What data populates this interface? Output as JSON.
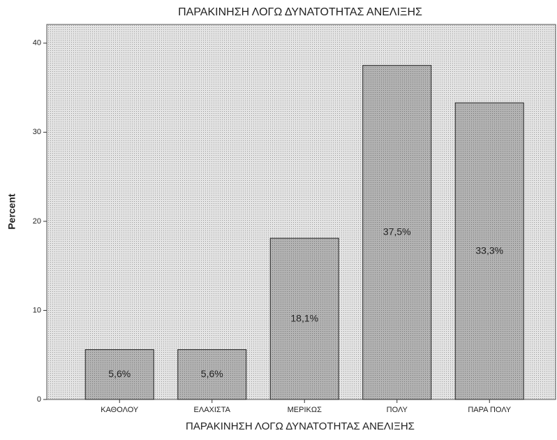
{
  "chart_data": {
    "type": "bar",
    "title": "ΠΑΡΑΚΙΝΗΣΗ ΛΟΓΩ ΔΥΝΑΤΟΤΗΤΑΣ ΑΝΕΛΙΞΗΣ",
    "x_label": "ΠΑΡΑΚΙΝΗΣΗ ΛΟΓΩ ΔΥΝΑΤΟΤΗΤΑΣ ΑΝΕΛΙΞΗΣ",
    "y_label": "Percent",
    "categories": [
      "ΚΑΘΟΛΟΥ",
      "ΕΛΑΧΙΣΤΑ",
      "ΜΕΡΙΚΩΣ",
      "ΠΟΛΥ",
      "ΠΑΡΑ ΠΟΛΥ"
    ],
    "values": [
      5.6,
      5.6,
      18.1,
      37.5,
      33.3
    ],
    "value_labels": [
      "5,6%",
      "5,6%",
      "18,1%",
      "37,5%",
      "33,3%"
    ],
    "color": "#a9a9a9",
    "ylim": [
      0,
      42.1
    ],
    "yticks": [
      0,
      10,
      20,
      30,
      40
    ]
  }
}
